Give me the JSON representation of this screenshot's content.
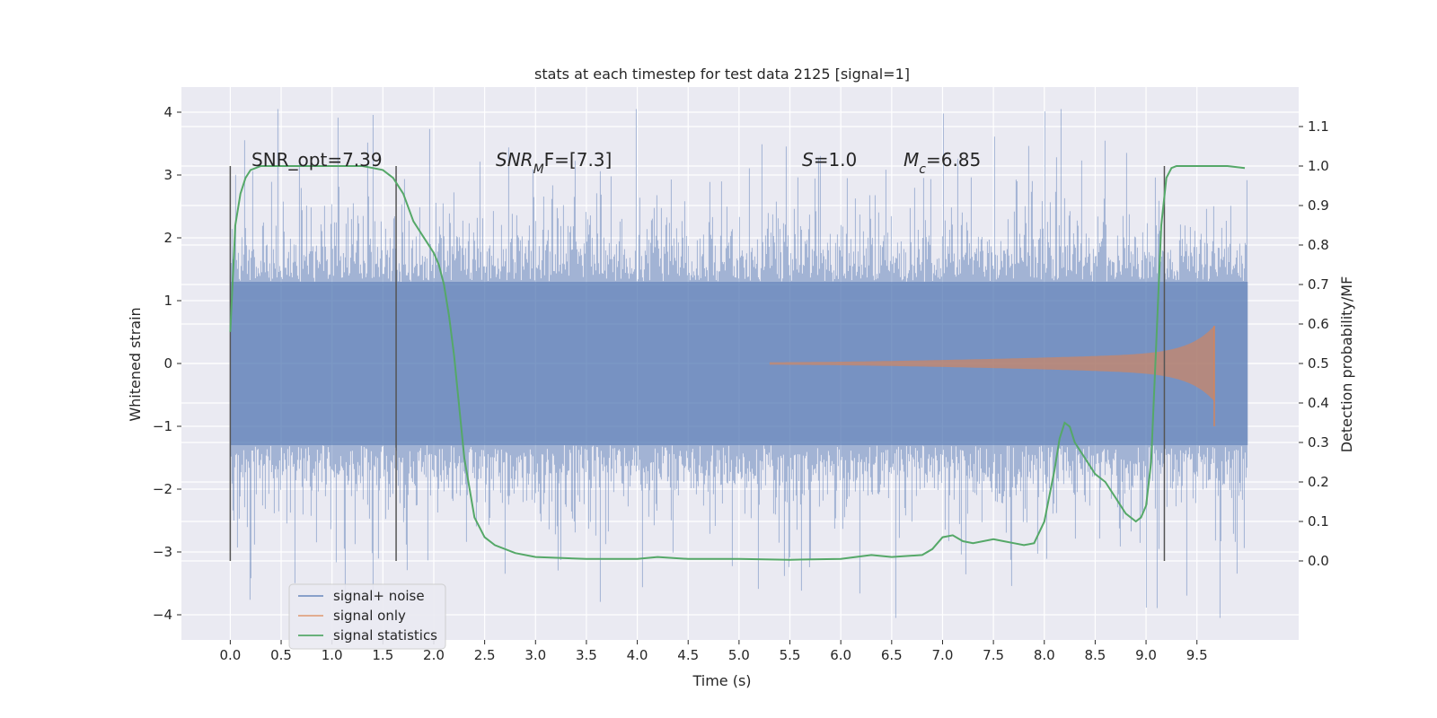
{
  "chart_data": {
    "type": "line",
    "title": "stats at each timestep for test data 2125 [signal=1]",
    "xlabel": "Time (s)",
    "ylabel": "Whitened strain",
    "ylabel_right": "Detection probability/MF",
    "xlim": [
      -0.48,
      10.5
    ],
    "ylim": [
      -4.4,
      4.4
    ],
    "ylim_right": [
      -0.2,
      1.2
    ],
    "x_ticks": [
      "0.0",
      "0.5",
      "1.0",
      "1.5",
      "2.0",
      "2.5",
      "3.0",
      "3.5",
      "4.0",
      "4.5",
      "5.0",
      "5.5",
      "6.0",
      "6.5",
      "7.0",
      "7.5",
      "8.0",
      "8.5",
      "9.0",
      "9.5"
    ],
    "y_ticks": [
      "4",
      "3",
      "2",
      "1",
      "0",
      "−1",
      "−2",
      "−3",
      "−4"
    ],
    "y_ticks_right": [
      "1.1",
      "1.0",
      "0.9",
      "0.8",
      "0.7",
      "0.6",
      "0.5",
      "0.4",
      "0.3",
      "0.2",
      "0.1",
      "0.0"
    ],
    "grid": true,
    "legend_position": "lower-left",
    "annotations": {
      "snr_opt": "SNR_opt=7.39",
      "snr_mf_base": "SNR",
      "snr_mf_sub": "M",
      "snr_mf_rest": "F=[7.3]",
      "s_base": "S",
      "s_rest": "=1.0",
      "mc_base": "M",
      "mc_sub": "c",
      "mc_rest": "=6.85"
    },
    "vlines_x": [
      0.0,
      1.63,
      9.18
    ],
    "series": [
      {
        "name": "signal+ noise",
        "color": "#4c72b0",
        "axis": "left",
        "description_x_range": [
          0.0,
          10.0
        ],
        "envelope_core": 1.3,
        "peak_max": 4.05,
        "peak_min": -4.05
      },
      {
        "name": "signal only",
        "color": "#dd8452",
        "axis": "left",
        "x_start": 5.3,
        "x_end": 9.67,
        "amplitude_end": 0.6
      },
      {
        "name": "signal statistics",
        "color": "#55a868",
        "axis": "right",
        "x": [
          0.0,
          0.05,
          0.1,
          0.15,
          0.2,
          0.3,
          0.5,
          0.8,
          1.1,
          1.3,
          1.4,
          1.5,
          1.6,
          1.7,
          1.8,
          1.9,
          2.0,
          2.05,
          2.1,
          2.15,
          2.2,
          2.25,
          2.3,
          2.4,
          2.5,
          2.6,
          2.8,
          3.0,
          3.5,
          4.0,
          4.2,
          4.5,
          5.0,
          5.5,
          6.0,
          6.3,
          6.5,
          6.8,
          6.9,
          7.0,
          7.1,
          7.2,
          7.3,
          7.5,
          7.6,
          7.7,
          7.8,
          7.9,
          8.0,
          8.1,
          8.15,
          8.2,
          8.25,
          8.3,
          8.4,
          8.5,
          8.6,
          8.7,
          8.8,
          8.9,
          8.95,
          9.0,
          9.05,
          9.1,
          9.15,
          9.2,
          9.25,
          9.3,
          9.4,
          9.6,
          9.8,
          9.97
        ],
        "y": [
          0.58,
          0.85,
          0.93,
          0.97,
          0.99,
          1.0,
          1.0,
          1.0,
          1.0,
          1.0,
          0.995,
          0.99,
          0.97,
          0.93,
          0.86,
          0.82,
          0.78,
          0.75,
          0.7,
          0.62,
          0.52,
          0.39,
          0.26,
          0.11,
          0.06,
          0.04,
          0.02,
          0.01,
          0.005,
          0.005,
          0.01,
          0.005,
          0.005,
          0.003,
          0.005,
          0.015,
          0.01,
          0.015,
          0.03,
          0.06,
          0.065,
          0.05,
          0.045,
          0.055,
          0.05,
          0.045,
          0.04,
          0.045,
          0.1,
          0.23,
          0.31,
          0.35,
          0.34,
          0.3,
          0.26,
          0.22,
          0.2,
          0.16,
          0.12,
          0.1,
          0.11,
          0.14,
          0.25,
          0.55,
          0.85,
          0.97,
          0.995,
          1.0,
          1.0,
          1.0,
          1.0,
          0.995
        ]
      }
    ]
  }
}
